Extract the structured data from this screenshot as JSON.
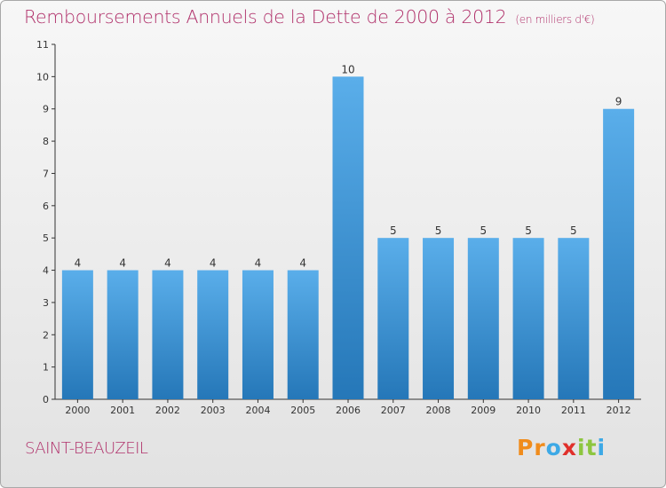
{
  "title": "Remboursements Annuels de la Dette de 2000 à 2012",
  "subtitle": "(en milliers d'€)",
  "commune": "SAINT-BEAUZEIL",
  "logo": {
    "letters": [
      "P",
      "r",
      "o",
      "x",
      "i",
      "t",
      "i"
    ],
    "colors": [
      "#f08c1c",
      "#f08c1c",
      "#3da9e6",
      "#e0302b",
      "#8dc63f",
      "#8dc63f",
      "#3da9e6"
    ]
  },
  "chart_data": {
    "type": "bar",
    "categories": [
      "2000",
      "2001",
      "2002",
      "2003",
      "2004",
      "2005",
      "2006",
      "2007",
      "2008",
      "2009",
      "2010",
      "2011",
      "2012"
    ],
    "values": [
      4,
      4,
      4,
      4,
      4,
      4,
      10,
      5,
      5,
      5,
      5,
      5,
      9
    ],
    "data_labels": [
      "4",
      "4",
      "4",
      "4",
      "4",
      "4",
      "10",
      "5",
      "5",
      "5",
      "5",
      "5",
      "9"
    ],
    "yticks": [
      "0",
      "1",
      "2",
      "3",
      "4",
      "5",
      "6",
      "7",
      "8",
      "9",
      "10",
      "11"
    ],
    "ylim": [
      0,
      11
    ],
    "bar_color_top": "#5aaeea",
    "bar_color_bottom": "#2577b8",
    "grid": false
  }
}
